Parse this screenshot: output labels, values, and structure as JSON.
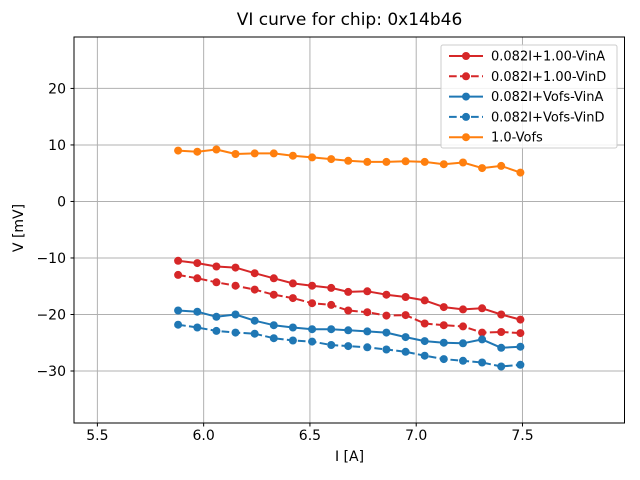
{
  "chart_data": {
    "type": "line",
    "title": "VI curve for chip: 0x14b46",
    "xlabel": "I [A]",
    "ylabel": "V [mV]",
    "grid": true,
    "legend_position": "upper right",
    "xlim": [
      5.39,
      7.98
    ],
    "ylim": [
      -39.2,
      29.1
    ],
    "xticks": [
      5.5,
      6.0,
      6.5,
      7.0,
      7.5
    ],
    "yticks": [
      20,
      10,
      0,
      -10,
      -20,
      -30
    ],
    "x": [
      5.88,
      5.97,
      6.06,
      6.15,
      6.24,
      6.33,
      6.42,
      6.51,
      6.6,
      6.68,
      6.77,
      6.86,
      6.95,
      7.04,
      7.13,
      7.22,
      7.31,
      7.4,
      7.49
    ],
    "series": [
      {
        "name": "0.082I+1.00-VinA",
        "color": "#d62728",
        "style": "solid",
        "values": [
          -10.5,
          -10.9,
          -11.5,
          -11.7,
          -12.7,
          -13.6,
          -14.5,
          -14.9,
          -15.3,
          -16.0,
          -15.9,
          -16.5,
          -16.9,
          -17.5,
          -18.7,
          -19.1,
          -18.9,
          -20.0,
          -20.9
        ]
      },
      {
        "name": "0.082I+1.00-VinD",
        "color": "#d62728",
        "style": "dashed",
        "values": [
          -13.0,
          -13.6,
          -14.3,
          -14.9,
          -15.6,
          -16.5,
          -17.1,
          -18.0,
          -18.3,
          -19.3,
          -19.6,
          -20.2,
          -20.1,
          -21.6,
          -21.9,
          -22.1,
          -23.2,
          -23.1,
          -23.3
        ]
      },
      {
        "name": "0.082I+Vofs-VinA",
        "color": "#1f77b4",
        "style": "solid",
        "values": [
          -19.3,
          -19.5,
          -20.4,
          -20.0,
          -21.1,
          -21.9,
          -22.3,
          -22.6,
          -22.6,
          -22.8,
          -23.0,
          -23.2,
          -24.0,
          -24.7,
          -25.0,
          -25.1,
          -24.4,
          -25.9,
          -25.7
        ]
      },
      {
        "name": "0.082I+Vofs-VinD",
        "color": "#1f77b4",
        "style": "dashed",
        "values": [
          -21.8,
          -22.3,
          -22.9,
          -23.2,
          -23.4,
          -24.2,
          -24.6,
          -24.8,
          -25.4,
          -25.6,
          -25.8,
          -26.2,
          -26.6,
          -27.3,
          -27.9,
          -28.2,
          -28.5,
          -29.2,
          -28.9
        ]
      },
      {
        "name": "1.0-Vofs",
        "color": "#ff7f0e",
        "style": "solid",
        "values": [
          9.0,
          8.8,
          9.2,
          8.4,
          8.5,
          8.5,
          8.1,
          7.8,
          7.5,
          7.2,
          7.0,
          7.0,
          7.1,
          7.0,
          6.6,
          6.9,
          5.9,
          6.3,
          5.1
        ]
      }
    ],
    "style": {
      "grid_color": "#b0b0b0",
      "spine_color": "#000000",
      "legend_border_color": "#cccccc",
      "background": "#ffffff"
    }
  }
}
